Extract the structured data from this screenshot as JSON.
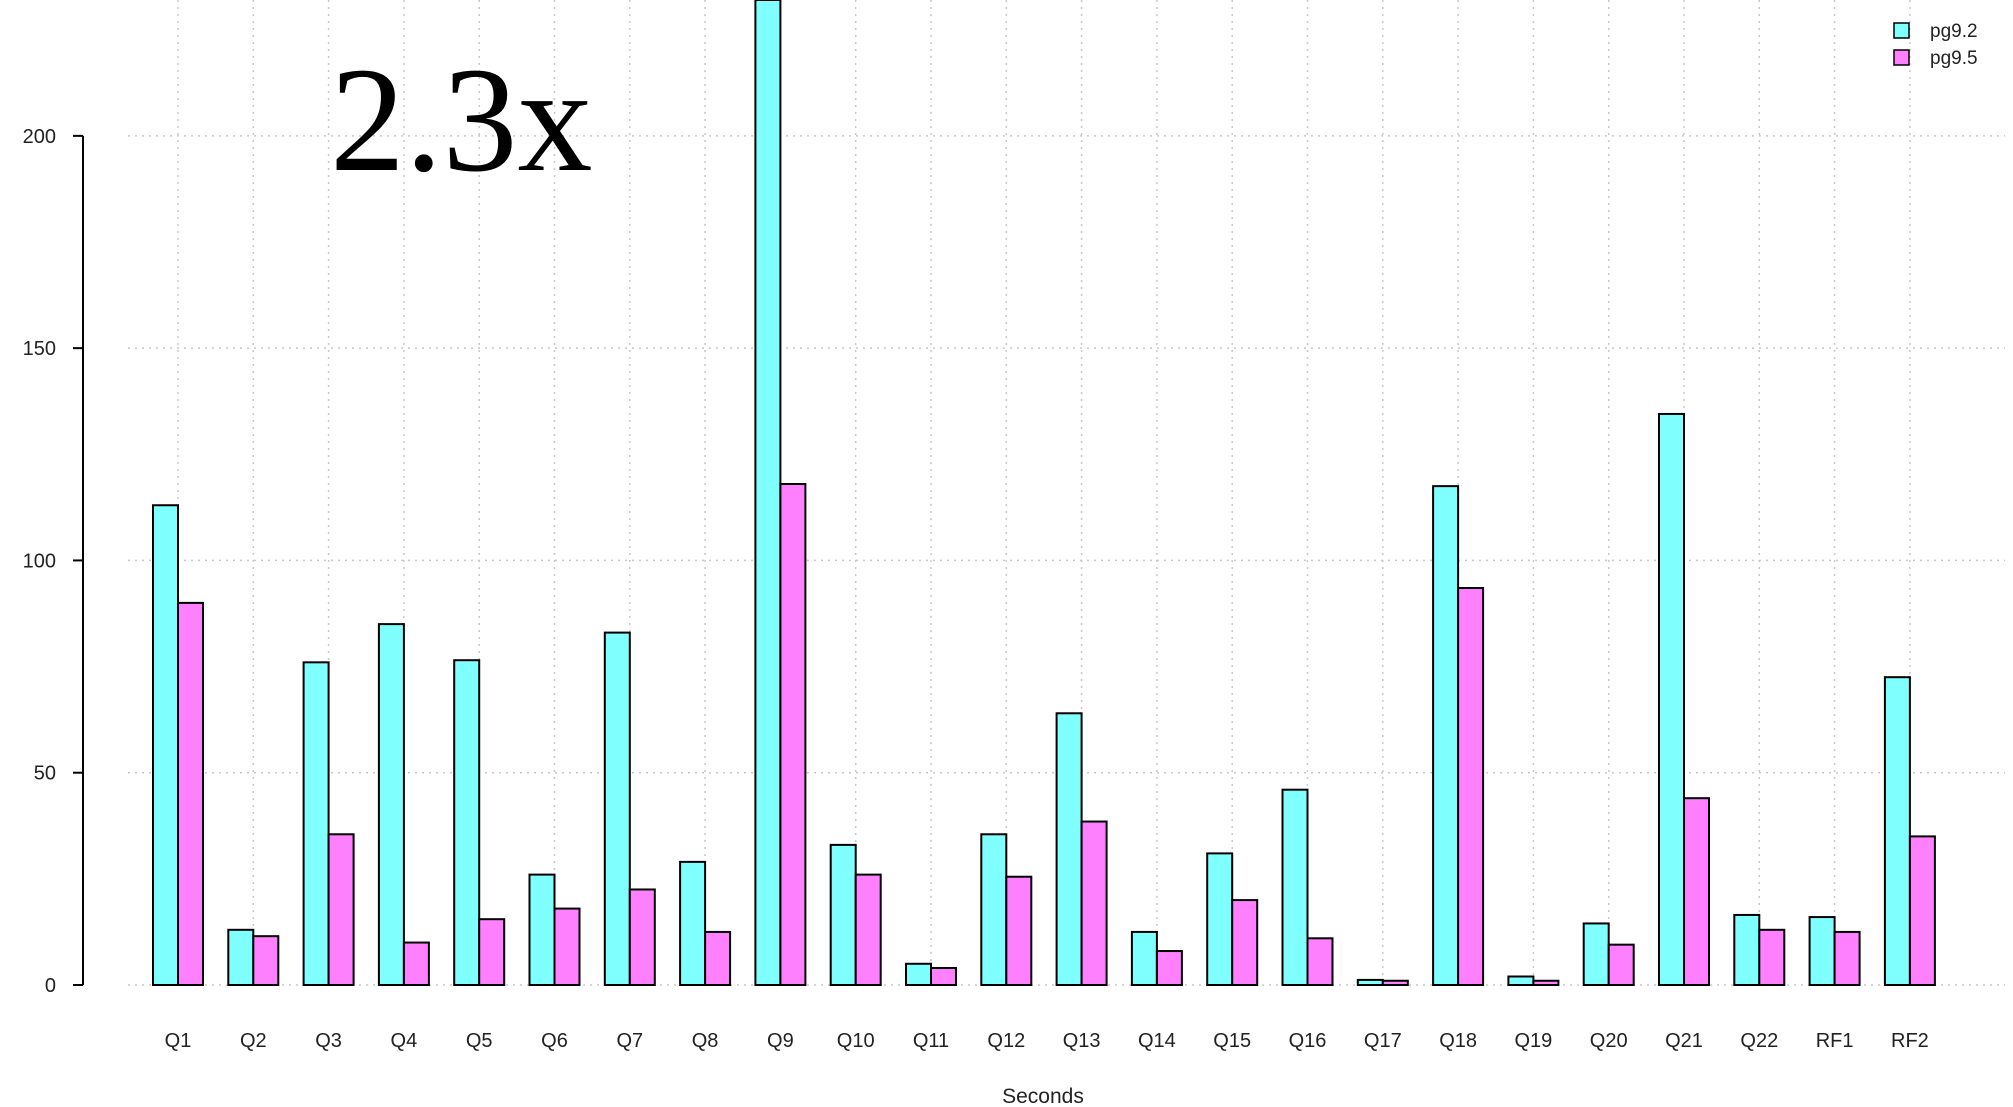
{
  "chart_data": {
    "type": "bar",
    "annotation": "2.3x",
    "xlabel": "Seconds",
    "ylabel": "",
    "ylim": [
      0,
      232
    ],
    "yticks": [
      0,
      50,
      100,
      150,
      200
    ],
    "grid": true,
    "legend_position": "top-right",
    "categories": [
      "Q1",
      "Q2",
      "Q3",
      "Q4",
      "Q5",
      "Q6",
      "Q7",
      "Q8",
      "Q9",
      "Q10",
      "Q11",
      "Q12",
      "Q13",
      "Q14",
      "Q15",
      "Q16",
      "Q17",
      "Q18",
      "Q19",
      "Q20",
      "Q21",
      "Q22",
      "RF1",
      "RF2"
    ],
    "series": [
      {
        "name": "pg9.2",
        "color": "#80ffff",
        "values": [
          113,
          13,
          76,
          85,
          76.5,
          26,
          83,
          29,
          232,
          33,
          5,
          35.5,
          64,
          12.5,
          31,
          46,
          1.2,
          117.5,
          2,
          14.5,
          134.5,
          16.5,
          16,
          72.5
        ]
      },
      {
        "name": "pg9.5",
        "color": "#ff80ff",
        "values": [
          90,
          11.5,
          35.5,
          10,
          15.5,
          18,
          22.5,
          12.5,
          118,
          26,
          4,
          25.5,
          38.5,
          8,
          20,
          11,
          1,
          93.5,
          1,
          9.5,
          44,
          13,
          12.5,
          35
        ]
      }
    ]
  }
}
